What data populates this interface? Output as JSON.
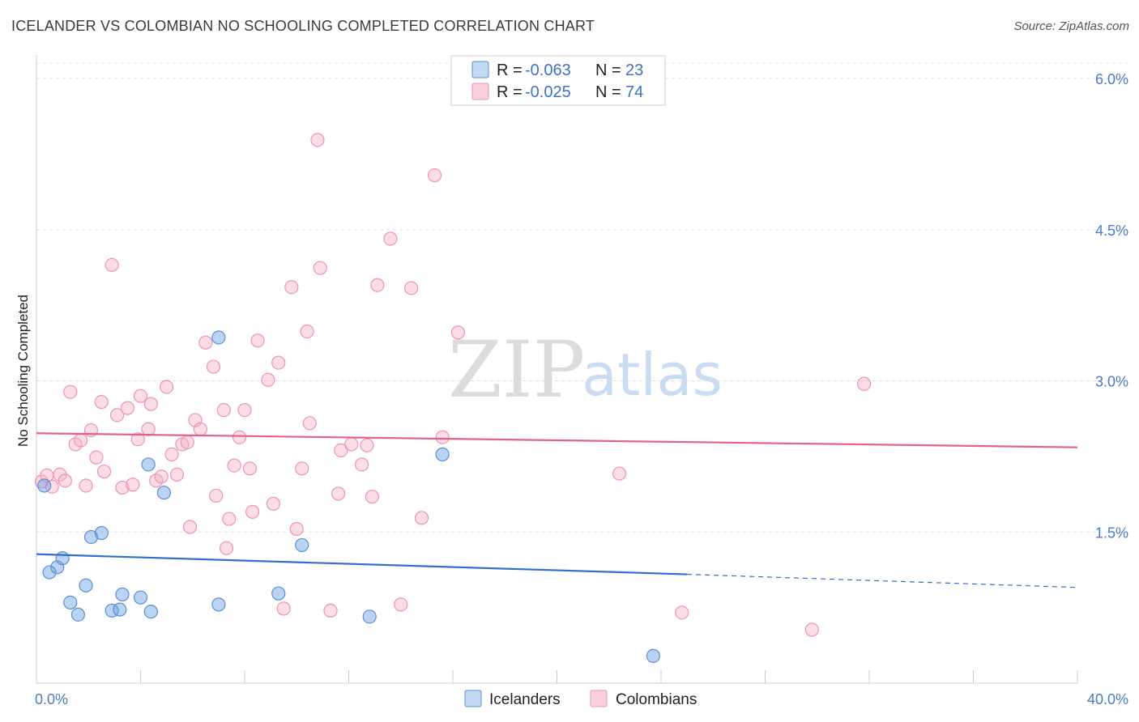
{
  "header": {
    "title": "ICELANDER VS COLOMBIAN NO SCHOOLING COMPLETED CORRELATION CHART",
    "source": "Source: ZipAtlas.com"
  },
  "watermark": {
    "zip": "ZIP",
    "atlas": "atlas"
  },
  "legend": {
    "r_label": "R =",
    "n_label": "N =",
    "entries": [
      {
        "r": "-0.063",
        "n": "23",
        "color": "#8fb8ea"
      },
      {
        "r": "-0.025",
        "n": "74",
        "color": "#f4a9c0"
      }
    ]
  },
  "bottom_legend": [
    "Icelanders",
    "Colombians"
  ],
  "chart_data": {
    "type": "scatter",
    "title": "ICELANDER VS COLOMBIAN NO SCHOOLING COMPLETED CORRELATION CHART",
    "xlabel": "",
    "ylabel": "No Schooling Completed",
    "xlim": [
      0,
      40
    ],
    "ylim": [
      0,
      6.2
    ],
    "x_tick_labels": [
      "0.0%",
      "40.0%"
    ],
    "y_ticks": [
      1.5,
      3.0,
      4.5,
      6.0
    ],
    "y_tick_labels": [
      "1.5%",
      "3.0%",
      "4.5%",
      "6.0%"
    ],
    "grid": true,
    "legend_position": "top-center",
    "series": [
      {
        "name": "Icelanders",
        "color": "#6a9fe0",
        "stroke": "#5a8fd6",
        "trend": {
          "x0": 0,
          "y0": 1.28,
          "x1": 25,
          "y1": 1.08,
          "dash_to": 40,
          "dash_y": 0.95,
          "color": "#2f6fcc"
        },
        "points": [
          [
            0.3,
            1.96
          ],
          [
            0.5,
            1.1
          ],
          [
            0.8,
            1.15
          ],
          [
            1.0,
            1.24
          ],
          [
            1.3,
            0.8
          ],
          [
            1.6,
            0.68
          ],
          [
            1.9,
            0.97
          ],
          [
            2.1,
            1.45
          ],
          [
            2.5,
            1.49
          ],
          [
            2.9,
            0.72
          ],
          [
            3.2,
            0.73
          ],
          [
            3.3,
            0.88
          ],
          [
            4.0,
            0.85
          ],
          [
            4.3,
            2.17
          ],
          [
            4.4,
            0.71
          ],
          [
            4.9,
            1.89
          ],
          [
            7.0,
            3.43
          ],
          [
            7.0,
            0.78
          ],
          [
            9.3,
            0.89
          ],
          [
            10.2,
            1.37
          ],
          [
            12.8,
            0.66
          ],
          [
            15.6,
            2.27
          ],
          [
            23.7,
            0.27
          ]
        ]
      },
      {
        "name": "Colombians",
        "color": "#f4b4c8",
        "stroke": "#ee93b0",
        "trend": {
          "x0": 0,
          "y0": 2.48,
          "x1": 40,
          "y1": 2.34,
          "color": "#e0628e"
        },
        "points": [
          [
            0.2,
            2.0
          ],
          [
            0.4,
            2.06
          ],
          [
            0.6,
            1.95
          ],
          [
            0.9,
            2.07
          ],
          [
            1.1,
            2.01
          ],
          [
            1.3,
            2.89
          ],
          [
            1.5,
            2.37
          ],
          [
            1.7,
            2.41
          ],
          [
            1.9,
            1.96
          ],
          [
            2.1,
            2.51
          ],
          [
            2.3,
            2.24
          ],
          [
            2.5,
            2.79
          ],
          [
            2.6,
            2.1
          ],
          [
            2.9,
            4.15
          ],
          [
            3.1,
            2.66
          ],
          [
            3.3,
            1.94
          ],
          [
            3.5,
            2.73
          ],
          [
            3.7,
            1.97
          ],
          [
            3.9,
            2.42
          ],
          [
            4.0,
            2.85
          ],
          [
            4.3,
            2.52
          ],
          [
            4.4,
            2.77
          ],
          [
            4.6,
            2.01
          ],
          [
            4.8,
            2.05
          ],
          [
            5.0,
            2.94
          ],
          [
            5.2,
            2.27
          ],
          [
            5.4,
            2.07
          ],
          [
            5.6,
            2.37
          ],
          [
            5.8,
            2.39
          ],
          [
            5.9,
            1.55
          ],
          [
            6.1,
            2.61
          ],
          [
            6.3,
            2.52
          ],
          [
            6.5,
            3.38
          ],
          [
            6.8,
            3.14
          ],
          [
            6.9,
            1.86
          ],
          [
            7.2,
            2.71
          ],
          [
            7.3,
            1.34
          ],
          [
            7.4,
            1.63
          ],
          [
            7.6,
            2.16
          ],
          [
            7.8,
            2.44
          ],
          [
            8.0,
            2.71
          ],
          [
            8.2,
            2.13
          ],
          [
            8.3,
            1.7
          ],
          [
            8.5,
            3.4
          ],
          [
            8.9,
            3.01
          ],
          [
            9.1,
            1.78
          ],
          [
            9.3,
            3.18
          ],
          [
            9.5,
            0.74
          ],
          [
            9.8,
            3.93
          ],
          [
            10.0,
            1.53
          ],
          [
            10.2,
            2.13
          ],
          [
            10.4,
            3.49
          ],
          [
            10.5,
            2.58
          ],
          [
            10.8,
            5.39
          ],
          [
            10.9,
            4.12
          ],
          [
            11.3,
            0.72
          ],
          [
            11.6,
            1.88
          ],
          [
            11.7,
            2.31
          ],
          [
            12.1,
            2.37
          ],
          [
            12.5,
            2.17
          ],
          [
            12.7,
            2.36
          ],
          [
            12.9,
            1.85
          ],
          [
            13.1,
            3.95
          ],
          [
            13.6,
            4.41
          ],
          [
            14.0,
            0.78
          ],
          [
            14.4,
            3.92
          ],
          [
            14.8,
            1.64
          ],
          [
            15.3,
            5.04
          ],
          [
            15.6,
            2.44
          ],
          [
            16.2,
            3.48
          ],
          [
            22.4,
            2.08
          ],
          [
            24.8,
            0.7
          ],
          [
            29.8,
            0.53
          ],
          [
            31.8,
            2.97
          ]
        ]
      }
    ]
  }
}
